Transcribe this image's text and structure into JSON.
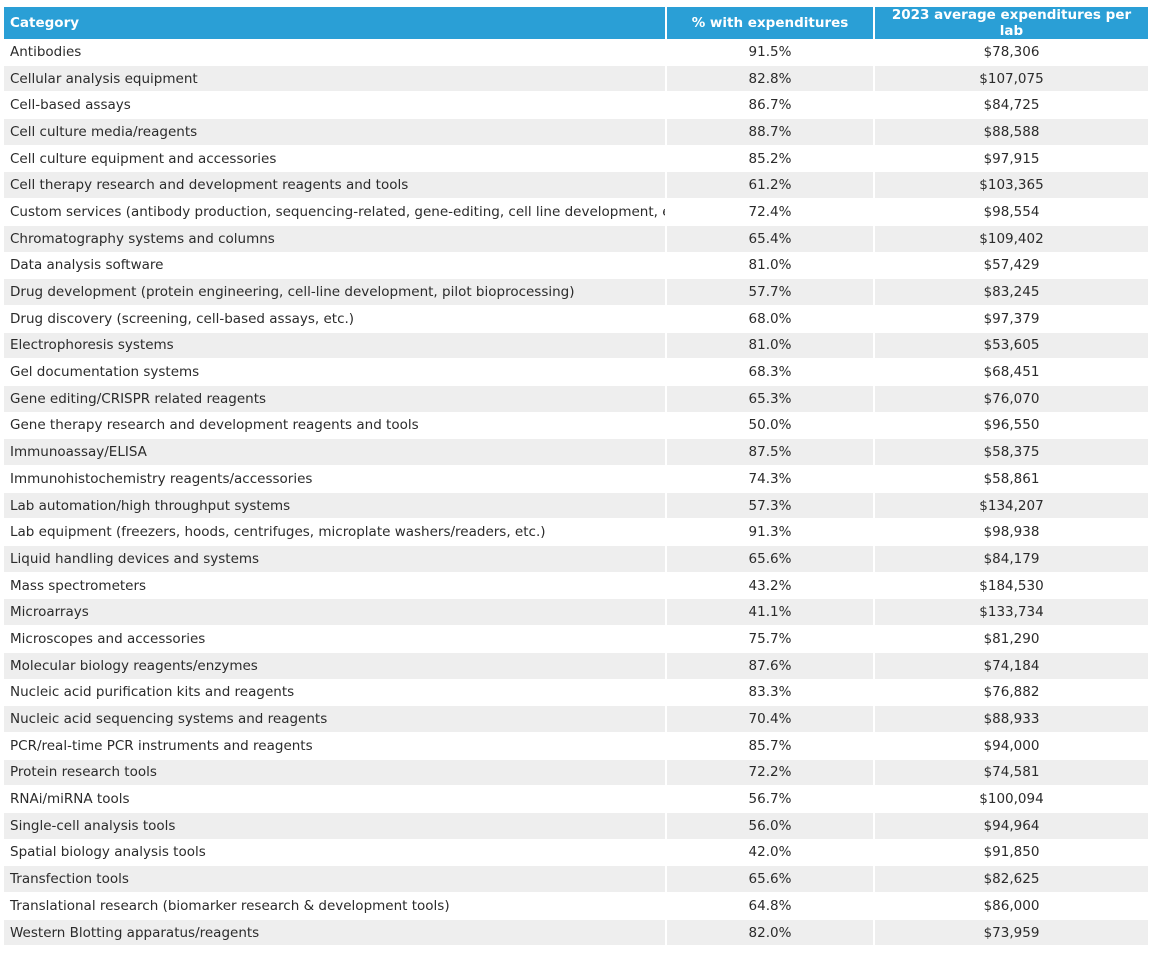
{
  "chart_data": {
    "type": "table",
    "columns": [
      "Category",
      "% with expenditures",
      "2023 average expenditures per lab"
    ],
    "rows": [
      [
        "Antibodies",
        "91.5%",
        "$78,306"
      ],
      [
        "Cellular analysis equipment",
        "82.8%",
        "$107,075"
      ],
      [
        "Cell-based assays",
        "86.7%",
        "$84,725"
      ],
      [
        "Cell culture media/reagents",
        "88.7%",
        "$88,588"
      ],
      [
        "Cell culture equipment and accessories",
        "85.2%",
        "$97,915"
      ],
      [
        "Cell therapy research and development reagents and tools",
        "61.2%",
        "$103,365"
      ],
      [
        "Custom services (antibody production, sequencing-related, gene-editing, cell line development, etc.)",
        "72.4%",
        "$98,554"
      ],
      [
        "Chromatography systems and columns",
        "65.4%",
        "$109,402"
      ],
      [
        "Data analysis software",
        "81.0%",
        "$57,429"
      ],
      [
        "Drug development (protein engineering, cell-line development, pilot bioprocessing)",
        "57.7%",
        "$83,245"
      ],
      [
        "Drug discovery (screening, cell-based assays, etc.)",
        "68.0%",
        "$97,379"
      ],
      [
        "Electrophoresis systems",
        "81.0%",
        "$53,605"
      ],
      [
        "Gel documentation systems",
        "68.3%",
        "$68,451"
      ],
      [
        "Gene editing/CRISPR related reagents",
        "65.3%",
        "$76,070"
      ],
      [
        "Gene therapy research and development reagents and tools",
        "50.0%",
        "$96,550"
      ],
      [
        "Immunoassay/ELISA",
        "87.5%",
        "$58,375"
      ],
      [
        "Immunohistochemistry reagents/accessories",
        "74.3%",
        "$58,861"
      ],
      [
        "Lab automation/high throughput systems",
        "57.3%",
        "$134,207"
      ],
      [
        "Lab equipment (freezers, hoods, centrifuges, microplate washers/readers, etc.)",
        "91.3%",
        "$98,938"
      ],
      [
        "Liquid handling devices and systems",
        "65.6%",
        "$84,179"
      ],
      [
        "Mass spectrometers",
        "43.2%",
        "$184,530"
      ],
      [
        "Microarrays",
        "41.1%",
        "$133,734"
      ],
      [
        "Microscopes and accessories",
        "75.7%",
        "$81,290"
      ],
      [
        "Molecular biology reagents/enzymes",
        "87.6%",
        "$74,184"
      ],
      [
        "Nucleic acid purification kits and reagents",
        "83.3%",
        "$76,882"
      ],
      [
        "Nucleic acid sequencing systems and reagents",
        "70.4%",
        "$88,933"
      ],
      [
        "PCR/real-time PCR instruments and reagents",
        "85.7%",
        "$94,000"
      ],
      [
        "Protein research tools",
        "72.2%",
        "$74,581"
      ],
      [
        "RNAi/miRNA tools",
        "56.7%",
        "$100,094"
      ],
      [
        "Single-cell analysis tools",
        "56.0%",
        "$94,964"
      ],
      [
        "Spatial biology analysis tools",
        "42.0%",
        "$91,850"
      ],
      [
        "Transfection tools",
        "65.6%",
        "$82,625"
      ],
      [
        "Translational research (biomarker research & development tools)",
        "64.8%",
        "$86,000"
      ],
      [
        "Western Blotting apparatus/reagents",
        "82.0%",
        "$73,959"
      ]
    ]
  },
  "colors": {
    "header_bg": "#2a9fd6",
    "header_text": "#ffffff",
    "stripe_bg": "#eeeeee",
    "row_bg": "#ffffff",
    "body_text": "#2b2b2b"
  }
}
